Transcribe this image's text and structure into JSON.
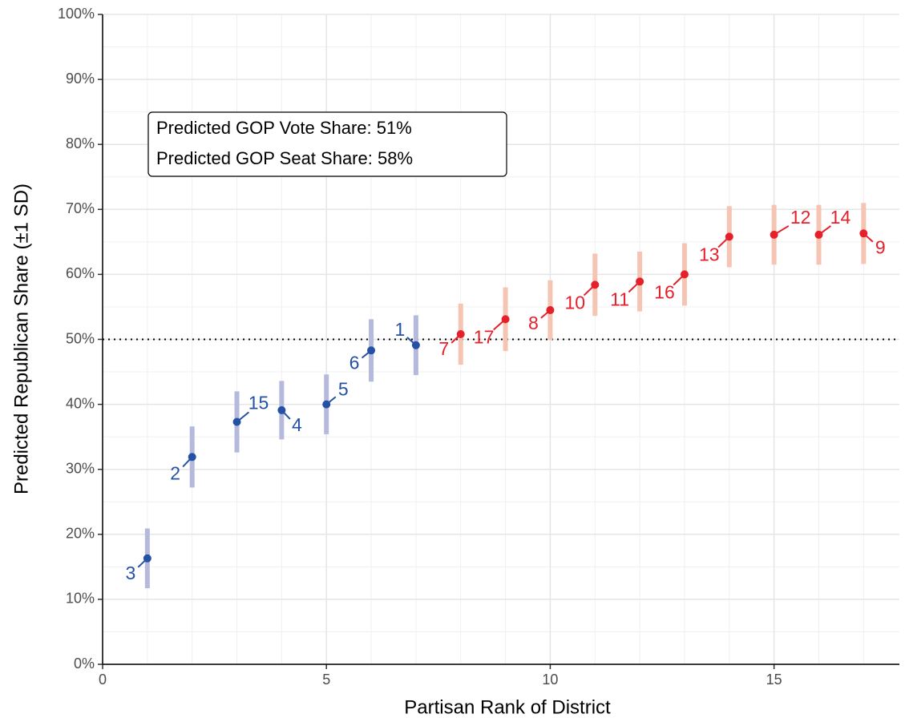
{
  "chart_data": {
    "type": "errorbar",
    "xlabel": "Partisan Rank of District",
    "ylabel": "Predicted Republican Share (±1 SD)",
    "xlim": [
      0,
      17.8
    ],
    "ylim": [
      0,
      100
    ],
    "xticks": [
      0,
      5,
      10,
      15
    ],
    "yticks": [
      {
        "value": 0,
        "label": "0%"
      },
      {
        "value": 10,
        "label": "10%"
      },
      {
        "value": 20,
        "label": "20%"
      },
      {
        "value": 30,
        "label": "30%"
      },
      {
        "value": 40,
        "label": "40%"
      },
      {
        "value": 50,
        "label": "50%"
      },
      {
        "value": 60,
        "label": "60%"
      },
      {
        "value": 70,
        "label": "70%"
      },
      {
        "value": 80,
        "label": "80%"
      },
      {
        "value": 90,
        "label": "90%"
      },
      {
        "value": 100,
        "label": "100%"
      }
    ],
    "x_minor_grid": [
      1,
      2,
      3,
      4,
      6,
      7,
      8,
      9,
      11,
      12,
      13,
      14,
      16,
      17
    ],
    "y_minor_grid": [
      5,
      15,
      25,
      35,
      45,
      55,
      65,
      75,
      85,
      95
    ],
    "grid": true,
    "hline": 50,
    "annotations": [
      "Predicted GOP Vote Share: 51%",
      "Predicted GOP Seat Share: 58%"
    ],
    "series": [
      {
        "color": "#2451a3",
        "bar_color": "#b5badc",
        "x": [
          1,
          2,
          3,
          4,
          5,
          6,
          7
        ],
        "values": [
          16.3,
          31.9,
          37.3,
          39.1,
          40.0,
          48.3,
          49.1
        ],
        "errors": [
          4.6,
          4.7,
          4.7,
          4.5,
          4.6,
          4.8,
          4.6
        ],
        "labels": [
          "3",
          "2",
          "15",
          "4",
          "5",
          "6",
          "1"
        ]
      },
      {
        "color": "#e5202b",
        "bar_color": "#f6c4b2",
        "x": [
          8,
          9,
          10,
          11,
          12,
          13,
          14,
          15,
          16,
          17
        ],
        "values": [
          50.8,
          53.1,
          54.5,
          58.4,
          58.9,
          60.0,
          65.8,
          66.1,
          66.1,
          66.3
        ],
        "errors": [
          4.7,
          4.9,
          4.6,
          4.8,
          4.6,
          4.8,
          4.7,
          4.6,
          4.6,
          4.7
        ],
        "labels": [
          "7",
          "17",
          "8",
          "10",
          "11",
          "16",
          "13",
          "12",
          "14",
          "9"
        ]
      }
    ]
  }
}
